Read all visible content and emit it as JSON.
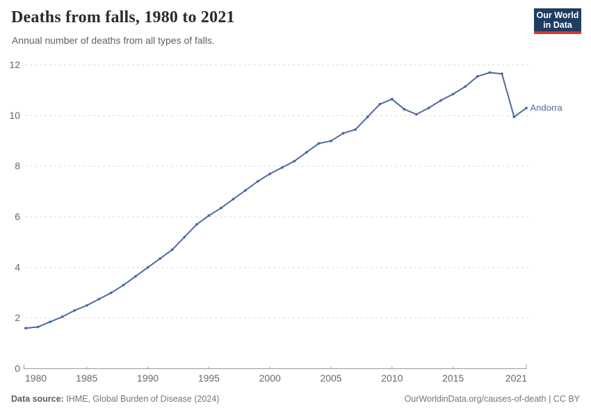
{
  "header": {
    "title": "Deaths from falls, 1980 to 2021",
    "subtitle": "Annual number of deaths from all types of falls."
  },
  "logo": {
    "line1": "Our World",
    "line2": "in Data",
    "bg_color": "#1d3d63",
    "accent_color": "#dc352b"
  },
  "footer": {
    "source_label": "Data source:",
    "source_value": " IHME, Global Burden of Disease (2024)",
    "attribution": "OurWorldinData.org/causes-of-death | CC BY"
  },
  "chart_data": {
    "type": "line",
    "title": "Deaths from falls, 1980 to 2021",
    "subtitle": "Annual number of deaths from all types of falls.",
    "xlabel": "",
    "ylabel": "",
    "xlim": [
      1980,
      2021
    ],
    "ylim": [
      0,
      12
    ],
    "x_ticks": [
      1980,
      1985,
      1990,
      1995,
      2000,
      2005,
      2010,
      2015,
      2021
    ],
    "y_ticks": [
      0,
      2,
      4,
      6,
      8,
      10,
      12
    ],
    "grid": "horizontal-dashed",
    "grid_color": "#d9d9d9",
    "axis_color": "#999999",
    "tick_label_color": "#666666",
    "series": [
      {
        "name": "Andorra",
        "color": "#4C6A9C",
        "x": [
          1980,
          1981,
          1982,
          1983,
          1984,
          1985,
          1986,
          1987,
          1988,
          1989,
          1990,
          1991,
          1992,
          1993,
          1994,
          1995,
          1996,
          1997,
          1998,
          1999,
          2000,
          2001,
          2002,
          2003,
          2004,
          2005,
          2006,
          2007,
          2008,
          2009,
          2010,
          2011,
          2012,
          2013,
          2014,
          2015,
          2016,
          2017,
          2018,
          2019,
          2020,
          2021
        ],
        "values": [
          1.6,
          1.65,
          1.85,
          2.05,
          2.3,
          2.5,
          2.75,
          3.0,
          3.3,
          3.65,
          4.0,
          4.35,
          4.7,
          5.2,
          5.7,
          6.05,
          6.35,
          6.7,
          7.05,
          7.4,
          7.7,
          7.95,
          8.2,
          8.55,
          8.9,
          9.0,
          9.3,
          9.45,
          9.95,
          10.45,
          10.65,
          10.25,
          10.05,
          10.3,
          10.6,
          10.85,
          11.15,
          11.55,
          11.7,
          11.65,
          9.95,
          10.3
        ]
      }
    ],
    "end_label": "Andorra",
    "legend_position": "end-of-line"
  }
}
